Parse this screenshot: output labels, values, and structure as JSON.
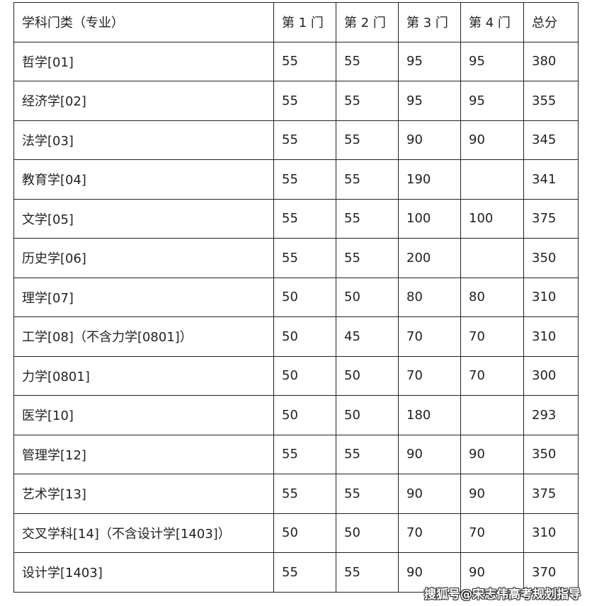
{
  "header": [
    "学科门类（专业）",
    "第 1 门",
    "第 2 门",
    "第 3 门",
    "第 4 门",
    "总分"
  ],
  "rows": [
    [
      "哲学[01]",
      "55",
      "55",
      "95",
      "95",
      "380"
    ],
    [
      "经济学[02]",
      "55",
      "55",
      "95",
      "95",
      "355"
    ],
    [
      "法学[03]",
      "55",
      "55",
      "90",
      "90",
      "345"
    ],
    [
      "教育学[04]",
      "55",
      "55",
      "190",
      "",
      "341"
    ],
    [
      "文学[05]",
      "55",
      "55",
      "100",
      "100",
      "375"
    ],
    [
      "历史学[06]",
      "55",
      "55",
      "200",
      "",
      "350"
    ],
    [
      "理学[07]",
      "50",
      "50",
      "80",
      "80",
      "310"
    ],
    [
      "工学[08]（不含力学[0801]）",
      "50",
      "45",
      "70",
      "70",
      "310"
    ],
    [
      "力学[0801]",
      "50",
      "50",
      "70",
      "70",
      "300"
    ],
    [
      "医学[10]",
      "50",
      "50",
      "180",
      "",
      "293"
    ],
    [
      "管理学[12]",
      "55",
      "55",
      "90",
      "90",
      "350"
    ],
    [
      "艺术学[13]",
      "55",
      "55",
      "90",
      "90",
      "375"
    ],
    [
      "交叉学科[14]（不含设计学[1403]）",
      "50",
      "50",
      "70",
      "70",
      "310"
    ],
    [
      "设计学[1403]",
      "55",
      "55",
      "90",
      "90",
      "370"
    ]
  ],
  "watermark": "搜狐号@宋志伟高考规划指导"
}
